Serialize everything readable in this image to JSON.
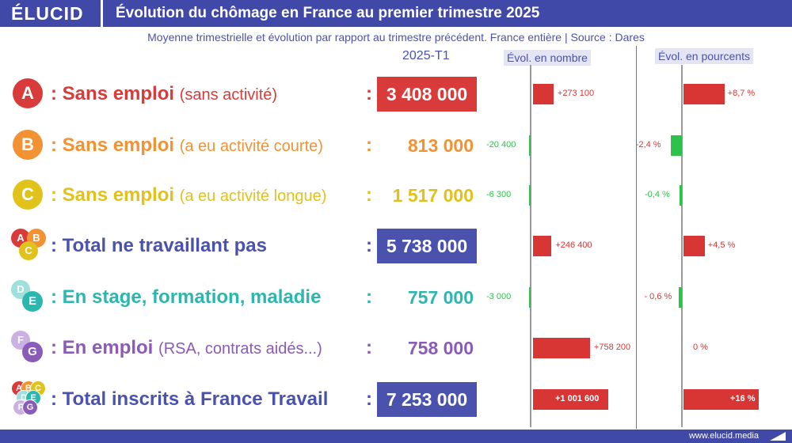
{
  "header": {
    "logo": "ÉLUCID",
    "title": "Évolution du chômage en France au premier trimestre 2025"
  },
  "subtitle": "Moyenne trimestrielle et évolution par rapport au trimestre précédent. France entière  |  Source : Dares",
  "columns": {
    "period": "2025-T1",
    "evol_nombre": "Évol. en nombre",
    "evol_pct": "Évol. en pourcents"
  },
  "footer": {
    "site": "www.elucid.media"
  },
  "colors": {
    "brand": "#4048a8",
    "A": "#d93a3a",
    "B": "#f29233",
    "C": "#e0c21a",
    "total": "#4a52ae",
    "D": "#2bb7ae",
    "E": "#8a5bb8",
    "positive": "#d83535",
    "negative": "#2ec24a"
  },
  "rows": [
    {
      "badge": "A",
      "label": "Sans emploi",
      "sub": "(sans activité)",
      "value": "3 408 000",
      "highlight": true,
      "evol_label": "+273 100",
      "pct_label": "+8,7 %"
    },
    {
      "badge": "B",
      "label": "Sans emploi",
      "sub": "(a eu activité courte)",
      "value": "813 000",
      "highlight": false,
      "evol_label": "-20 400",
      "pct_label": "-2,4 %"
    },
    {
      "badge": "C",
      "label": "Sans emploi",
      "sub": "(a eu activité longue)",
      "value": "1 517 000",
      "highlight": false,
      "evol_label": "-6 300",
      "pct_label": "-0,4 %"
    },
    {
      "badge": "ABC",
      "label": "Total ne travaillant pas",
      "sub": "",
      "value": "5 738 000",
      "highlight": true,
      "evol_label": "+246 400",
      "pct_label": "+4,5 %"
    },
    {
      "badge": "DE",
      "label": "En stage, formation, maladie",
      "sub": "",
      "value": "757 000",
      "highlight": false,
      "evol_label": "-3 000",
      "pct_label": "- 0,6 %"
    },
    {
      "badge": "FG",
      "label": "En emploi",
      "sub": "(RSA, contrats aidés...)",
      "value": "758 000",
      "highlight": false,
      "evol_label": "+758 200",
      "pct_label": "0 %"
    },
    {
      "badge": "ABCDEFG",
      "label": "Total inscrits à France Travail",
      "sub": "",
      "value": "7 253 000",
      "highlight": true,
      "evol_label": "+1 001 600",
      "pct_label": "+16 %"
    }
  ],
  "chart_data": {
    "type": "bar",
    "title": "Évolution du chômage en France au premier trimestre 2025",
    "subtitle": "Moyenne trimestrielle et évolution par rapport au trimestre précédent. France entière  |  Source : Dares",
    "categories": [
      "Sans emploi (sans activité)",
      "Sans emploi (a eu activité courte)",
      "Sans emploi (a eu activité longue)",
      "Total ne travaillant pas",
      "En stage, formation, maladie",
      "En emploi (RSA, contrats aidés...)",
      "Total inscrits à France Travail"
    ],
    "series": [
      {
        "name": "2025-T1",
        "values": [
          3408000,
          813000,
          1517000,
          5738000,
          757000,
          758000,
          7253000
        ]
      },
      {
        "name": "Évol. en nombre",
        "values": [
          273100,
          -20400,
          -6300,
          246400,
          -3000,
          758200,
          1001600
        ]
      },
      {
        "name": "Évol. en pourcents",
        "values": [
          8.7,
          -2.4,
          -0.4,
          4.5,
          -0.6,
          0,
          16
        ]
      }
    ]
  }
}
